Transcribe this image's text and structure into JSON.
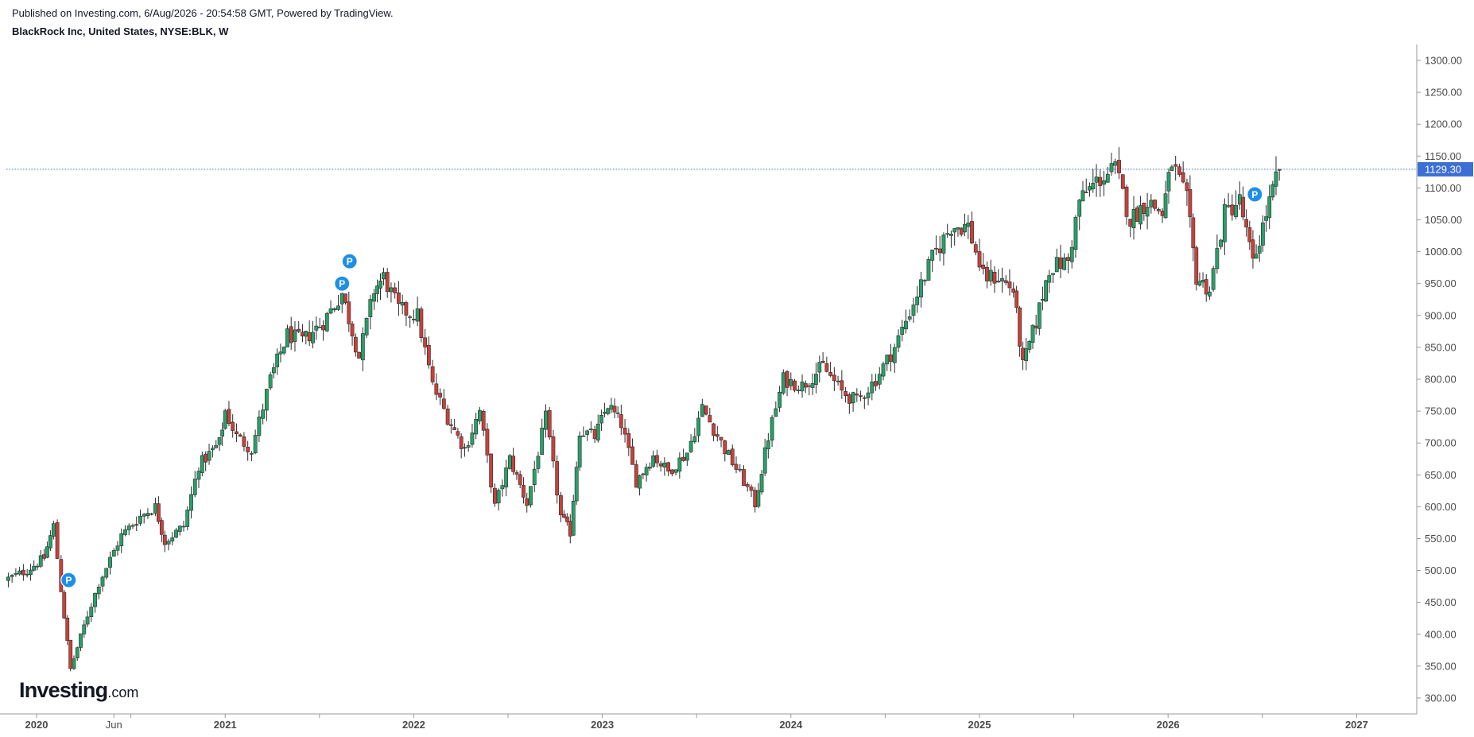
{
  "header": {
    "published": "Published on Investing.com, 6/Aug/2026 - 20:54:58 GMT, Powered by TradingView.",
    "instrument": "BlackRock Inc, United States, NYSE:BLK, W"
  },
  "logo": {
    "brand": "Investing",
    "tld": ".com"
  },
  "colors": {
    "up": "#26a069",
    "down": "#c9403a",
    "price_line": "#3b6fd4",
    "axis": "#9a9a9a",
    "marker": "#1e8fe6"
  },
  "chart_data": {
    "type": "candlestick",
    "interval": "W",
    "ylim": [
      275,
      1325
    ],
    "ticks_y": [
      "300.00",
      "350.00",
      "400.00",
      "450.00",
      "500.00",
      "550.00",
      "600.00",
      "650.00",
      "700.00",
      "750.00",
      "800.00",
      "850.00",
      "900.00",
      "950.00",
      "1000.00",
      "1050.00",
      "1100.00",
      "1150.00",
      "1200.00",
      "1250.00",
      "1300.00"
    ],
    "ticks_x": [
      {
        "label": "2020",
        "x": 2020.0,
        "bold": true
      },
      {
        "label": "Jun",
        "x": 2020.41,
        "bold": false
      },
      {
        "label": "2021",
        "x": 2021.0,
        "bold": true
      },
      {
        "label": "2022",
        "x": 2022.0,
        "bold": true
      },
      {
        "label": "2023",
        "x": 2023.0,
        "bold": true
      },
      {
        "label": "2024",
        "x": 2024.0,
        "bold": true
      },
      {
        "label": "2025",
        "x": 2025.0,
        "bold": true
      },
      {
        "label": "2026",
        "x": 2026.0,
        "bold": true
      },
      {
        "label": "2027",
        "x": 2027.0,
        "bold": true
      }
    ],
    "minor_ticks_x": [
      2020.5,
      2021.5,
      2022.5,
      2023.5,
      2024.5,
      2025.5,
      2026.5
    ],
    "last_price": 1129.3,
    "last_price_label": "1129.30",
    "price_anchors": [
      {
        "x": 2019.83,
        "price": 485
      },
      {
        "x": 2019.95,
        "price": 500
      },
      {
        "x": 2020.04,
        "price": 520
      },
      {
        "x": 2020.09,
        "price": 570
      },
      {
        "x": 2020.13,
        "price": 470
      },
      {
        "x": 2020.18,
        "price": 345
      },
      {
        "x": 2020.27,
        "price": 430
      },
      {
        "x": 2020.33,
        "price": 480
      },
      {
        "x": 2020.45,
        "price": 555
      },
      {
        "x": 2020.55,
        "price": 585
      },
      {
        "x": 2020.63,
        "price": 600
      },
      {
        "x": 2020.68,
        "price": 545
      },
      {
        "x": 2020.78,
        "price": 570
      },
      {
        "x": 2020.86,
        "price": 665
      },
      {
        "x": 2020.97,
        "price": 700
      },
      {
        "x": 2021.0,
        "price": 750
      },
      {
        "x": 2021.06,
        "price": 710
      },
      {
        "x": 2021.14,
        "price": 690
      },
      {
        "x": 2021.24,
        "price": 800
      },
      {
        "x": 2021.33,
        "price": 870
      },
      {
        "x": 2021.41,
        "price": 860
      },
      {
        "x": 2021.52,
        "price": 890
      },
      {
        "x": 2021.62,
        "price": 935
      },
      {
        "x": 2021.71,
        "price": 835
      },
      {
        "x": 2021.79,
        "price": 940
      },
      {
        "x": 2021.84,
        "price": 960
      },
      {
        "x": 2021.92,
        "price": 910
      },
      {
        "x": 2022.02,
        "price": 900
      },
      {
        "x": 2022.1,
        "price": 790
      },
      {
        "x": 2022.18,
        "price": 740
      },
      {
        "x": 2022.27,
        "price": 690
      },
      {
        "x": 2022.35,
        "price": 750
      },
      {
        "x": 2022.43,
        "price": 600
      },
      {
        "x": 2022.51,
        "price": 675
      },
      {
        "x": 2022.6,
        "price": 605
      },
      {
        "x": 2022.7,
        "price": 740
      },
      {
        "x": 2022.78,
        "price": 585
      },
      {
        "x": 2022.83,
        "price": 560
      },
      {
        "x": 2022.88,
        "price": 720
      },
      {
        "x": 2022.96,
        "price": 710
      },
      {
        "x": 2023.03,
        "price": 760
      },
      {
        "x": 2023.1,
        "price": 730
      },
      {
        "x": 2023.18,
        "price": 640
      },
      {
        "x": 2023.27,
        "price": 680
      },
      {
        "x": 2023.35,
        "price": 655
      },
      {
        "x": 2023.45,
        "price": 685
      },
      {
        "x": 2023.53,
        "price": 755
      },
      {
        "x": 2023.65,
        "price": 690
      },
      {
        "x": 2023.75,
        "price": 640
      },
      {
        "x": 2023.81,
        "price": 605
      },
      {
        "x": 2023.88,
        "price": 710
      },
      {
        "x": 2023.96,
        "price": 800
      },
      {
        "x": 2024.06,
        "price": 790
      },
      {
        "x": 2024.17,
        "price": 820
      },
      {
        "x": 2024.27,
        "price": 780
      },
      {
        "x": 2024.35,
        "price": 765
      },
      {
        "x": 2024.45,
        "price": 800
      },
      {
        "x": 2024.55,
        "price": 850
      },
      {
        "x": 2024.65,
        "price": 920
      },
      {
        "x": 2024.75,
        "price": 990
      },
      {
        "x": 2024.85,
        "price": 1040
      },
      {
        "x": 2024.94,
        "price": 1040
      },
      {
        "x": 2025.02,
        "price": 960
      },
      {
        "x": 2025.1,
        "price": 960
      },
      {
        "x": 2025.18,
        "price": 940
      },
      {
        "x": 2025.23,
        "price": 820
      },
      {
        "x": 2025.3,
        "price": 890
      },
      {
        "x": 2025.37,
        "price": 975
      },
      {
        "x": 2025.47,
        "price": 985
      },
      {
        "x": 2025.53,
        "price": 1080
      },
      {
        "x": 2025.62,
        "price": 1110
      },
      {
        "x": 2025.72,
        "price": 1130
      },
      {
        "x": 2025.8,
        "price": 1050
      },
      {
        "x": 2025.89,
        "price": 1080
      },
      {
        "x": 2025.97,
        "price": 1060
      },
      {
        "x": 2026.02,
        "price": 1140
      },
      {
        "x": 2026.1,
        "price": 1080
      },
      {
        "x": 2026.15,
        "price": 960
      },
      {
        "x": 2026.22,
        "price": 940
      },
      {
        "x": 2026.3,
        "price": 1060
      },
      {
        "x": 2026.38,
        "price": 1080
      },
      {
        "x": 2026.45,
        "price": 980
      },
      {
        "x": 2026.52,
        "price": 1060
      },
      {
        "x": 2026.59,
        "price": 1129.3
      }
    ],
    "markers": [
      {
        "x": 2020.17,
        "price": 485,
        "label": "P"
      },
      {
        "x": 2021.62,
        "price": 950,
        "label": "P"
      },
      {
        "x": 2021.66,
        "price": 985,
        "label": "P"
      },
      {
        "x": 2026.46,
        "price": 1090,
        "label": "P"
      }
    ]
  }
}
